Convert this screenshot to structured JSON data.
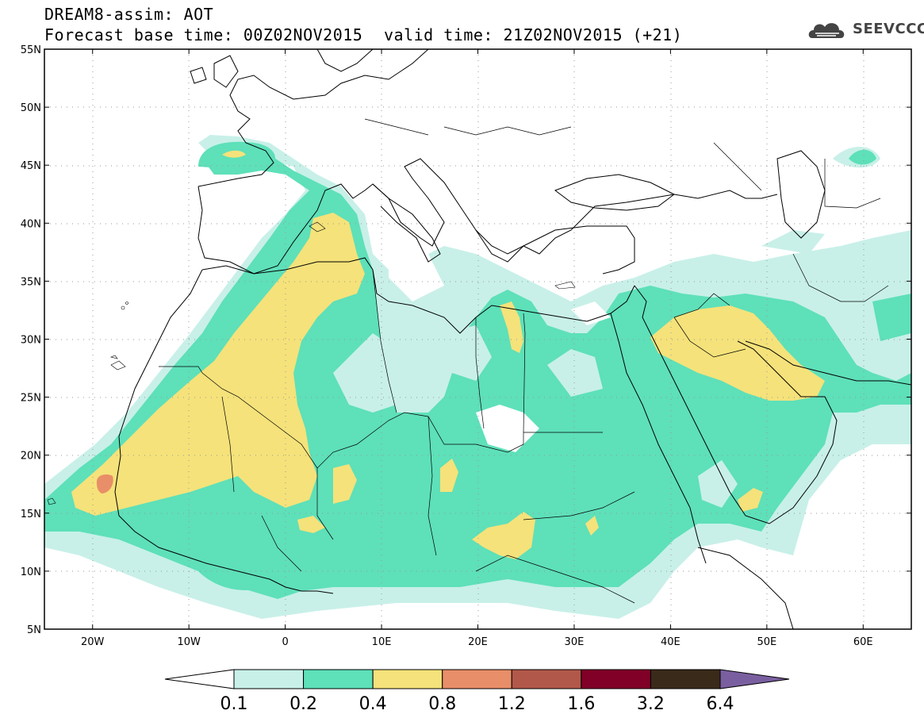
{
  "header": {
    "line1": "DREAM8-assim: AOT",
    "line2": "Forecast base time: 00Z02NOV2015",
    "valid": "valid time: 21Z02NOV2015 (+21)",
    "logo_text": "SEEVCCC",
    "logo_icon": "cloud-icon"
  },
  "map": {
    "lon_range": [
      -25,
      65
    ],
    "lat_range": [
      5,
      55
    ],
    "lat_labels": [
      "55N",
      "50N",
      "45N",
      "40N",
      "35N",
      "30N",
      "25N",
      "20N",
      "15N",
      "10N",
      "5N"
    ],
    "lat_values": [
      55,
      50,
      45,
      40,
      35,
      30,
      25,
      20,
      15,
      10,
      5
    ],
    "lon_labels": [
      "20W",
      "10W",
      "0",
      "10E",
      "20E",
      "30E",
      "40E",
      "50E",
      "60E"
    ],
    "lon_values": [
      -20,
      -10,
      0,
      10,
      20,
      30,
      40,
      50,
      60
    ],
    "grid": "dotted",
    "ocean_color": "#ffffff",
    "border_color": "#000000"
  },
  "legend": {
    "levels": [
      "0.1",
      "0.2",
      "0.4",
      "0.8",
      "1.2",
      "1.6",
      "3.2",
      "6.4"
    ],
    "colors": [
      "#ffffff",
      "#c8f0e8",
      "#5ee0b9",
      "#f5e27a",
      "#e88e68",
      "#b2584a",
      "#800027",
      "#3a2a1a",
      "#7a5fa0"
    ]
  }
}
